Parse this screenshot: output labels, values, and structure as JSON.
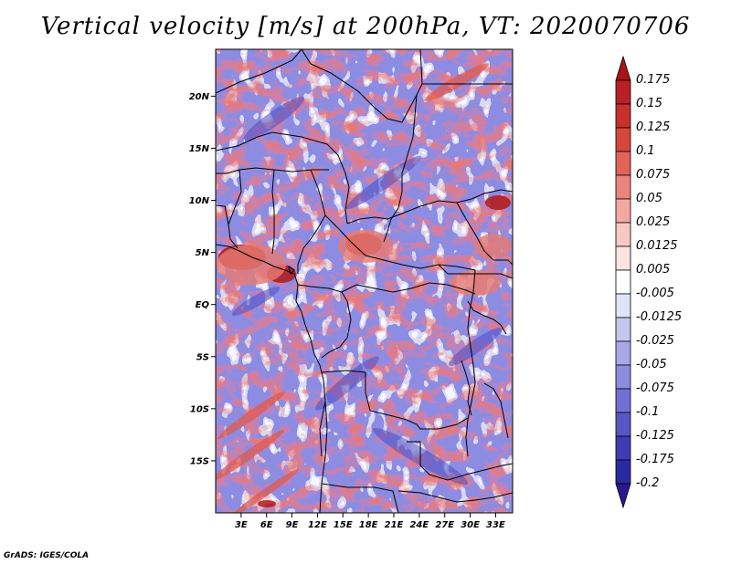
{
  "title": "Vertical velocity [m/s] at 200hPa, VT: 2020070706",
  "credit": "GrADS: IGES/COLA",
  "map": {
    "lat_labels": [
      "20N",
      "15N",
      "10N",
      "5N",
      "EQ",
      "5S",
      "10S",
      "15S"
    ],
    "lat_values": [
      20,
      15,
      10,
      5,
      0,
      -5,
      -10,
      -15
    ],
    "lon_labels": [
      "3E",
      "6E",
      "9E",
      "12E",
      "15E",
      "18E",
      "21E",
      "24E",
      "27E",
      "30E",
      "33E"
    ],
    "lon_values": [
      3,
      6,
      9,
      12,
      15,
      18,
      21,
      24,
      27,
      30,
      33
    ],
    "lat_range": [
      -20,
      24.5
    ],
    "lon_range": [
      0,
      35
    ]
  },
  "colorbar": {
    "labels": [
      "0.175",
      "0.15",
      "0.125",
      "0.1",
      "0.075",
      "0.05",
      "0.025",
      "0.0125",
      "0.005",
      "-0.005",
      "-0.0125",
      "-0.025",
      "-0.05",
      "-0.075",
      "-0.1",
      "-0.125",
      "-0.175",
      "-0.2"
    ],
    "colors": [
      "#a8141c",
      "#b82026",
      "#c8302e",
      "#d5473c",
      "#e0645a",
      "#ea847c",
      "#f2a8a0",
      "#f8c8c2",
      "#fbe4e0",
      "#ffffff",
      "#e2e2f8",
      "#c6c6f0",
      "#a8a8e8",
      "#8c8ce0",
      "#7070d4",
      "#5656c4",
      "#3c3cb4",
      "#2a2aa0",
      "#2a1890"
    ]
  }
}
